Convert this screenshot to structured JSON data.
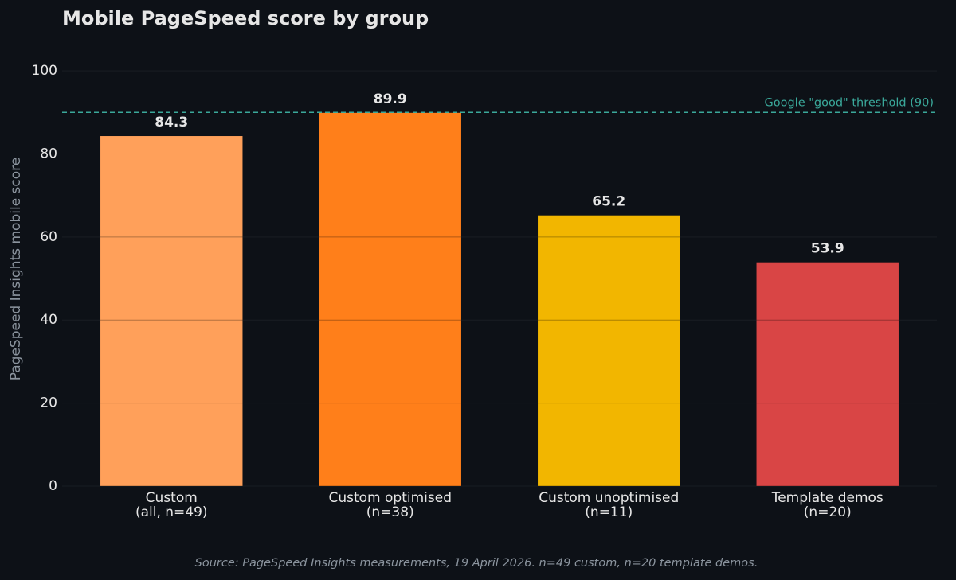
{
  "chart_data": {
    "type": "bar",
    "title": "Mobile PageSpeed score by group",
    "ylabel": "PageSpeed Insights mobile score",
    "categories": [
      "Custom\n(all, n=49)",
      "Custom optimised\n(n=38)",
      "Custom unoptimised\n(n=11)",
      "Template demos\n(n=20)"
    ],
    "values": [
      84.3,
      89.9,
      65.2,
      53.9
    ],
    "colors": [
      "#ffa05a",
      "#ff7f1a",
      "#f2b600",
      "#d94545"
    ],
    "ylim": [
      0,
      105
    ],
    "yticks": [
      0,
      20,
      40,
      60,
      80,
      100
    ],
    "grid": true,
    "threshold": {
      "value": 90,
      "label": "Google \"good\" threshold (90)",
      "color": "#3aa89a"
    },
    "source": "Source: PageSpeed Insights measurements, 19 April 2026. n=49 custom, n=20 template demos."
  }
}
